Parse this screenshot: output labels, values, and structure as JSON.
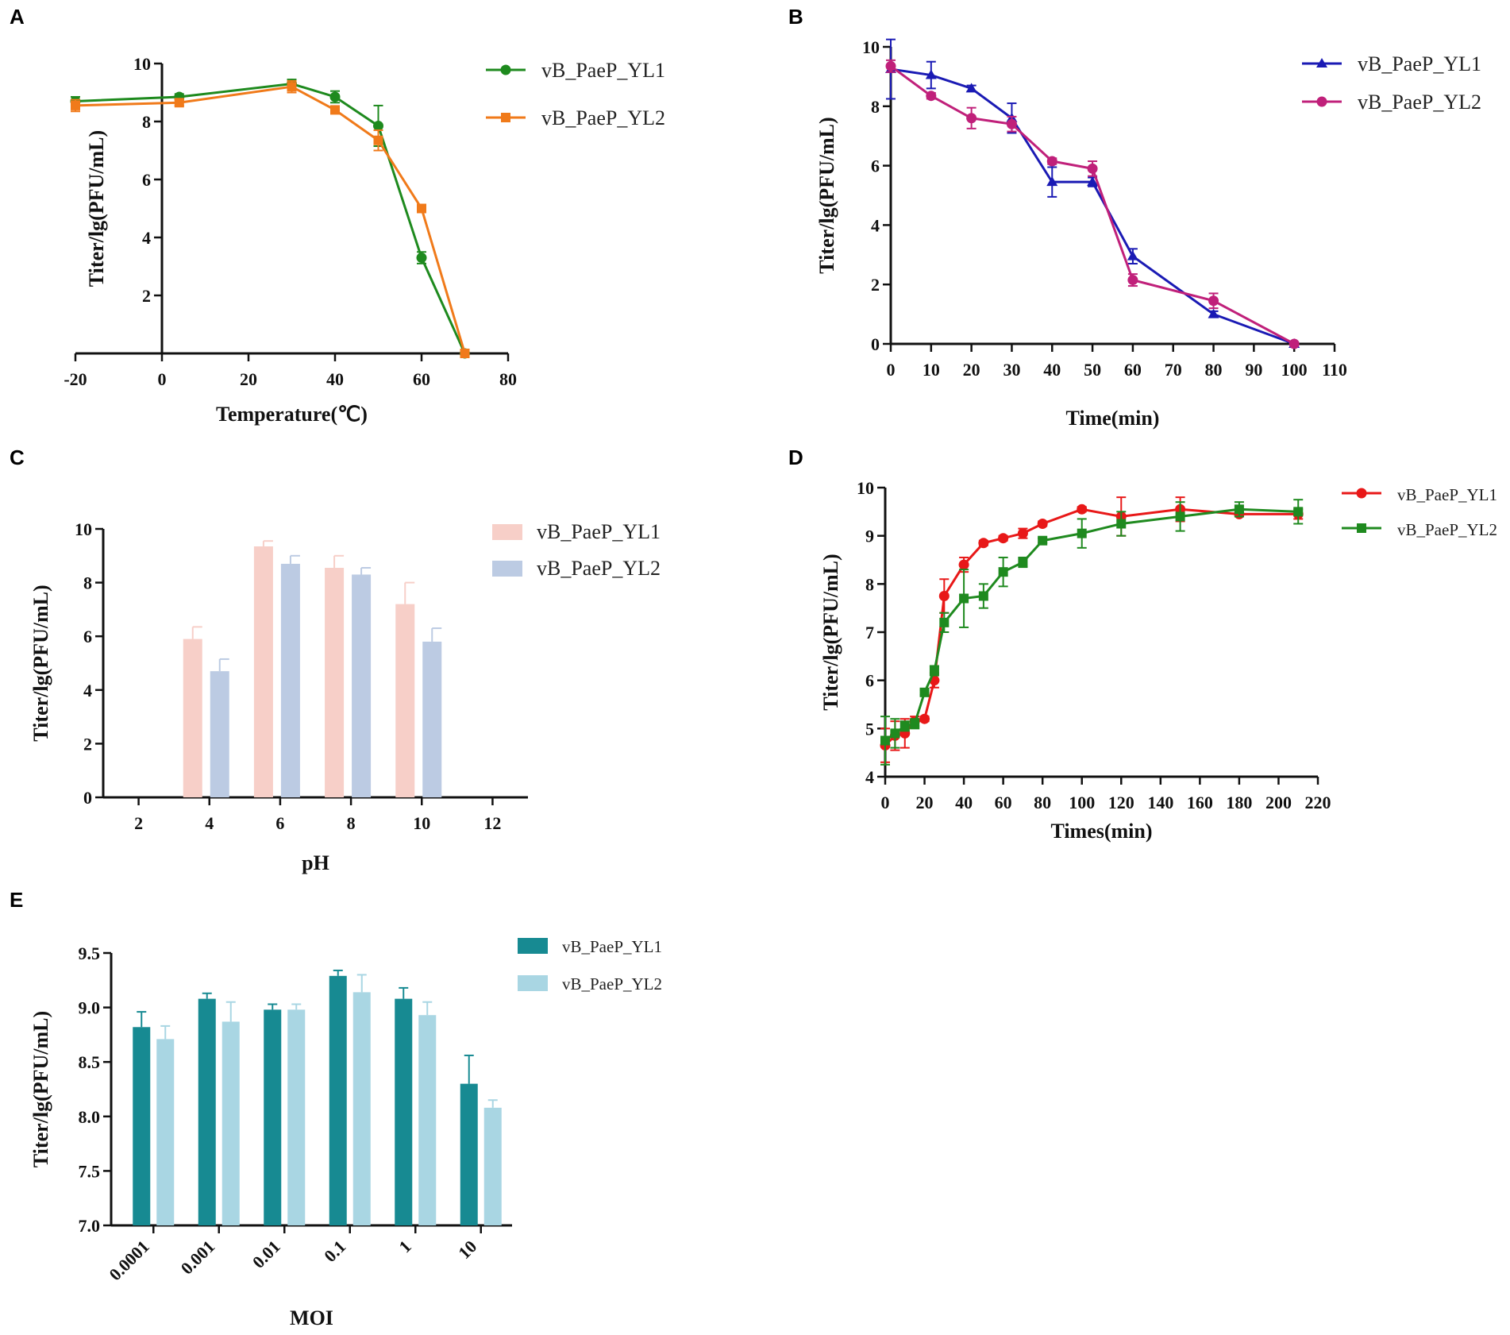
{
  "chart_data": [
    {
      "panel": "A",
      "type": "line",
      "xlabel": "Temperature(℃)",
      "ylabel": "Titer/lg(PFU/mL)",
      "xlim": [
        -20,
        80
      ],
      "ylim": [
        0,
        10
      ],
      "xticks": [
        -20,
        0,
        20,
        40,
        60,
        80
      ],
      "yticks": [
        2,
        4,
        6,
        8,
        10
      ],
      "xtick_labels": [
        "-20",
        "0",
        "20",
        "40",
        "60",
        "80"
      ],
      "ytick_labels": [
        "2",
        "4",
        "6",
        "8",
        "10"
      ],
      "series": [
        {
          "name": "vB_PaeP_YL1",
          "color": "#1e8a1e",
          "marker": "circle",
          "x": [
            -20,
            4,
            30,
            40,
            50,
            60,
            70
          ],
          "y": [
            8.7,
            8.85,
            9.3,
            8.85,
            7.85,
            3.3,
            0
          ],
          "err": [
            0.15,
            0.1,
            0.15,
            0.2,
            0.7,
            0.2,
            0
          ]
        },
        {
          "name": "vB_PaeP_YL2",
          "color": "#f07a1a",
          "marker": "square",
          "x": [
            -20,
            4,
            30,
            40,
            50,
            60,
            70
          ],
          "y": [
            8.55,
            8.65,
            9.2,
            8.4,
            7.35,
            5.0,
            0
          ],
          "err": [
            0.2,
            0.1,
            0.2,
            0.1,
            0.35,
            0.1,
            0
          ]
        }
      ]
    },
    {
      "panel": "B",
      "type": "line",
      "xlabel": "Time(min)",
      "ylabel": "Titer/lg(PFU/mL)",
      "xlim": [
        0,
        110
      ],
      "ylim": [
        0,
        10
      ],
      "xticks": [
        0,
        10,
        20,
        30,
        40,
        50,
        60,
        70,
        80,
        90,
        100,
        110
      ],
      "yticks": [
        0,
        2,
        4,
        6,
        8,
        10
      ],
      "xtick_labels": [
        "0",
        "10",
        "20",
        "30",
        "40",
        "50",
        "60",
        "70",
        "80",
        "90",
        "100",
        "110"
      ],
      "ytick_labels": [
        "0",
        "2",
        "4",
        "6",
        "8",
        "10"
      ],
      "series": [
        {
          "name": "vB_PaeP_YL1",
          "color": "#1a1ab4",
          "marker": "triangle",
          "x": [
            0,
            10,
            20,
            30,
            40,
            50,
            60,
            80,
            100
          ],
          "y": [
            9.25,
            9.05,
            8.6,
            7.6,
            5.45,
            5.45,
            2.95,
            1.0,
            0
          ],
          "err": [
            1.0,
            0.45,
            0.1,
            0.5,
            0.5,
            0.15,
            0.25,
            0.1,
            0
          ]
        },
        {
          "name": "vB_PaeP_YL2",
          "color": "#c0207a",
          "marker": "circle",
          "x": [
            0,
            10,
            20,
            30,
            40,
            50,
            60,
            80,
            100
          ],
          "y": [
            9.35,
            8.35,
            7.6,
            7.4,
            6.15,
            5.9,
            2.15,
            1.45,
            0
          ],
          "err": [
            0.2,
            0.1,
            0.35,
            0.25,
            0.1,
            0.25,
            0.2,
            0.25,
            0
          ]
        }
      ]
    },
    {
      "panel": "C",
      "type": "bar",
      "xlabel": "pH",
      "ylabel": "Titer/lg(PFU/mL)",
      "xlim": [
        1,
        13
      ],
      "ylim": [
        0,
        10
      ],
      "xticks": [
        2,
        4,
        6,
        8,
        10,
        12
      ],
      "yticks": [
        0,
        2,
        4,
        6,
        8,
        10
      ],
      "xtick_labels": [
        "2",
        "4",
        "6",
        "8",
        "10",
        "12"
      ],
      "ytick_labels": [
        "0",
        "2",
        "4",
        "6",
        "8",
        "10"
      ],
      "categories": [
        4,
        6,
        8,
        10
      ],
      "series": [
        {
          "name": "vB_PaeP_YL1",
          "color": "#f7cfc8",
          "values": [
            5.9,
            9.35,
            8.55,
            7.2
          ],
          "err": [
            0.45,
            0.2,
            0.45,
            0.8
          ]
        },
        {
          "name": "vB_PaeP_YL2",
          "color": "#bccbe3",
          "values": [
            4.7,
            8.7,
            8.3,
            5.8
          ],
          "err": [
            0.45,
            0.3,
            0.25,
            0.5
          ]
        }
      ]
    },
    {
      "panel": "D",
      "type": "line",
      "xlabel": "Times(min)",
      "ylabel": "Titer/lg(PFU/mL)",
      "xlim": [
        0,
        220
      ],
      "ylim": [
        4,
        10
      ],
      "xticks": [
        0,
        20,
        40,
        60,
        80,
        100,
        120,
        140,
        160,
        180,
        200,
        220
      ],
      "yticks": [
        4,
        5,
        6,
        7,
        8,
        9,
        10
      ],
      "xtick_labels": [
        "0",
        "20",
        "40",
        "60",
        "80",
        "100",
        "120",
        "140",
        "160",
        "180",
        "200",
        "220"
      ],
      "ytick_labels": [
        "4",
        "5",
        "6",
        "7",
        "8",
        "9",
        "10"
      ],
      "series": [
        {
          "name": "vB_PaeP_YL1",
          "color": "#e81818",
          "marker": "circle",
          "x": [
            0,
            5,
            10,
            15,
            20,
            25,
            30,
            40,
            50,
            60,
            70,
            80,
            100,
            120,
            150,
            180,
            210
          ],
          "y": [
            4.65,
            4.85,
            4.9,
            5.15,
            5.2,
            6.0,
            7.75,
            8.4,
            8.85,
            8.95,
            9.05,
            9.25,
            9.55,
            9.4,
            9.55,
            9.45,
            9.45
          ],
          "err": [
            0.35,
            0.3,
            0.3,
            0.1,
            0.05,
            0.15,
            0.35,
            0.15,
            0.05,
            0.05,
            0.1,
            0.05,
            0.05,
            0.4,
            0.25,
            0.05,
            0.1
          ]
        },
        {
          "name": "vB_PaeP_YL2",
          "color": "#1f8a1f",
          "marker": "square",
          "x": [
            0,
            5,
            10,
            15,
            20,
            25,
            30,
            40,
            50,
            60,
            70,
            80,
            100,
            120,
            150,
            180,
            210
          ],
          "y": [
            4.75,
            4.9,
            5.05,
            5.1,
            5.75,
            6.2,
            7.2,
            7.7,
            7.75,
            8.25,
            8.45,
            8.9,
            9.05,
            9.25,
            9.4,
            9.55,
            9.5
          ],
          "err": [
            0.5,
            0.3,
            0.1,
            0.1,
            0.05,
            0.1,
            0.2,
            0.6,
            0.25,
            0.3,
            0.1,
            0.05,
            0.3,
            0.25,
            0.3,
            0.15,
            0.25
          ]
        }
      ]
    },
    {
      "panel": "E",
      "type": "bar",
      "xlabel": "MOI",
      "ylabel": "Titer/lg(PFU/mL)",
      "ylim": [
        7.0,
        9.5
      ],
      "yticks": [
        7.0,
        7.5,
        8.0,
        8.5,
        9.0,
        9.5
      ],
      "ytick_labels": [
        "7.0",
        "7.5",
        "8.0",
        "8.5",
        "9.0",
        "9.5"
      ],
      "categories": [
        "0.0001",
        "0.001",
        "0.01",
        "0.1",
        "1",
        "10"
      ],
      "series": [
        {
          "name": "vB_PaeP_YL1",
          "color": "#178a92",
          "values": [
            8.82,
            9.08,
            8.98,
            9.29,
            9.08,
            8.3
          ],
          "err": [
            0.14,
            0.05,
            0.05,
            0.05,
            0.1,
            0.26
          ]
        },
        {
          "name": "vB_PaeP_YL2",
          "color": "#a9d6e3",
          "values": [
            8.71,
            8.87,
            8.98,
            9.14,
            8.93,
            8.08
          ],
          "err": [
            0.12,
            0.18,
            0.05,
            0.16,
            0.12,
            0.07
          ]
        }
      ]
    }
  ]
}
